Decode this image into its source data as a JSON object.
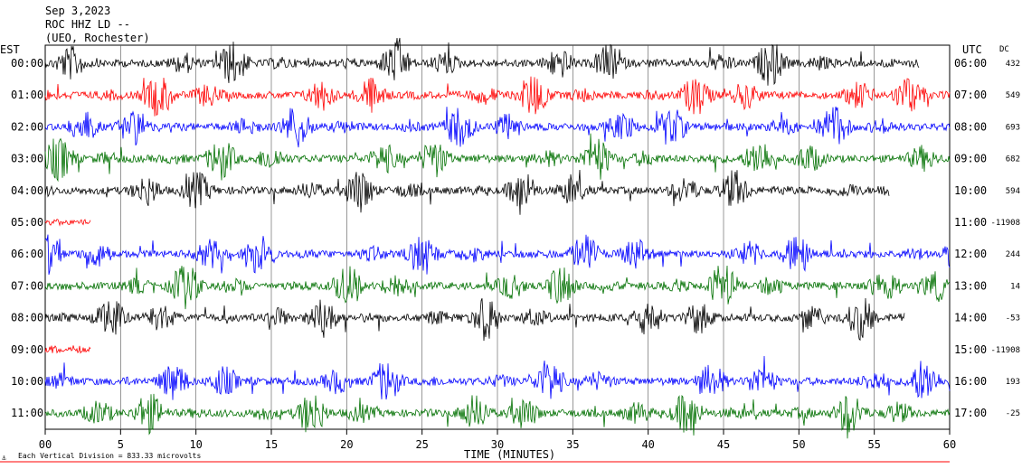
{
  "header": {
    "date": "Sep 3,2023",
    "station": "ROC HHZ LD --",
    "network": "(UEO, Rochester)"
  },
  "left_axis_label": "EST",
  "right_axis_label": "UTC",
  "dc_label": "DC",
  "footer": {
    "scale_text": "Each Vertical Division = 833.33 microvolts"
  },
  "chart_data": {
    "type": "line",
    "title": "Sep 3,2023",
    "xlabel": "TIME (MINUTES)",
    "xlim": [
      0,
      60
    ],
    "x_ticks": [
      "00",
      "5",
      "10",
      "15",
      "20",
      "25",
      "30",
      "35",
      "40",
      "45",
      "50",
      "55",
      "60"
    ],
    "trace_colors": [
      "#000000",
      "#ff0000",
      "#0000ff",
      "#007000"
    ],
    "rows": [
      {
        "est": "00:00",
        "utc": "06:00",
        "dc": "432",
        "color": "#000000",
        "end_minute": 58
      },
      {
        "est": "01:00",
        "utc": "07:00",
        "dc": "549",
        "color": "#ff0000",
        "end_minute": 60
      },
      {
        "est": "02:00",
        "utc": "08:00",
        "dc": "693",
        "color": "#0000ff",
        "end_minute": 60
      },
      {
        "est": "03:00",
        "utc": "09:00",
        "dc": "682",
        "color": "#007000",
        "end_minute": 60
      },
      {
        "est": "04:00",
        "utc": "10:00",
        "dc": "594",
        "color": "#000000",
        "end_minute": 56
      },
      {
        "est": "05:00",
        "utc": "11:00",
        "dc": "-11908",
        "color": "#ff0000",
        "end_minute": 3
      },
      {
        "est": "06:00",
        "utc": "12:00",
        "dc": "244",
        "color": "#0000ff",
        "end_minute": 60
      },
      {
        "est": "07:00",
        "utc": "13:00",
        "dc": "14",
        "color": "#007000",
        "end_minute": 60
      },
      {
        "est": "08:00",
        "utc": "14:00",
        "dc": "-53",
        "color": "#000000",
        "end_minute": 57
      },
      {
        "est": "09:00",
        "utc": "15:00",
        "dc": "-11908",
        "color": "#ff0000",
        "end_minute": 3
      },
      {
        "est": "10:00",
        "utc": "16:00",
        "dc": "193",
        "color": "#0000ff",
        "end_minute": 60
      },
      {
        "est": "11:00",
        "utc": "17:00",
        "dc": "-25",
        "color": "#007000",
        "end_minute": 60
      }
    ]
  }
}
